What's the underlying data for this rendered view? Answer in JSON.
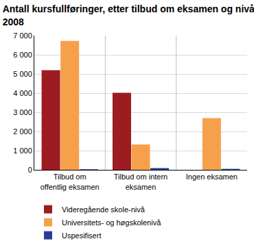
{
  "chart_data": {
    "type": "bar",
    "title": [
      "Antall kursfullføringer, etter tilbud om eksamen og nivå.",
      "2008"
    ],
    "categories": [
      "Tilbud om offentlig eksamen",
      "Tilbud om intern eksamen",
      "Ingen eksamen"
    ],
    "series": [
      {
        "name": "Videregående skole-nivå",
        "color": "#9c1c22",
        "values": [
          5200,
          4020,
          0
        ]
      },
      {
        "name": "Universitets- og høgskolenivå",
        "color": "#f7a04b",
        "values": [
          6720,
          1320,
          2700
        ]
      },
      {
        "name": "Uspesifisert",
        "color": "#2a3d96",
        "values": [
          30,
          90,
          50
        ]
      }
    ],
    "ylim": [
      0,
      7000
    ],
    "yticks": [
      0,
      {
        "value": 1000,
        "label": "1 000"
      },
      {
        "value": 2000,
        "label": "2 000"
      },
      {
        "value": 3000,
        "label": "3 000"
      },
      {
        "value": 4000,
        "label": "4 000"
      },
      {
        "value": 5000,
        "label": "5 000"
      },
      {
        "value": 6000,
        "label": "6 000"
      },
      {
        "value": 7000,
        "label": "7 000"
      }
    ],
    "grid": true,
    "legend": "bottom"
  }
}
